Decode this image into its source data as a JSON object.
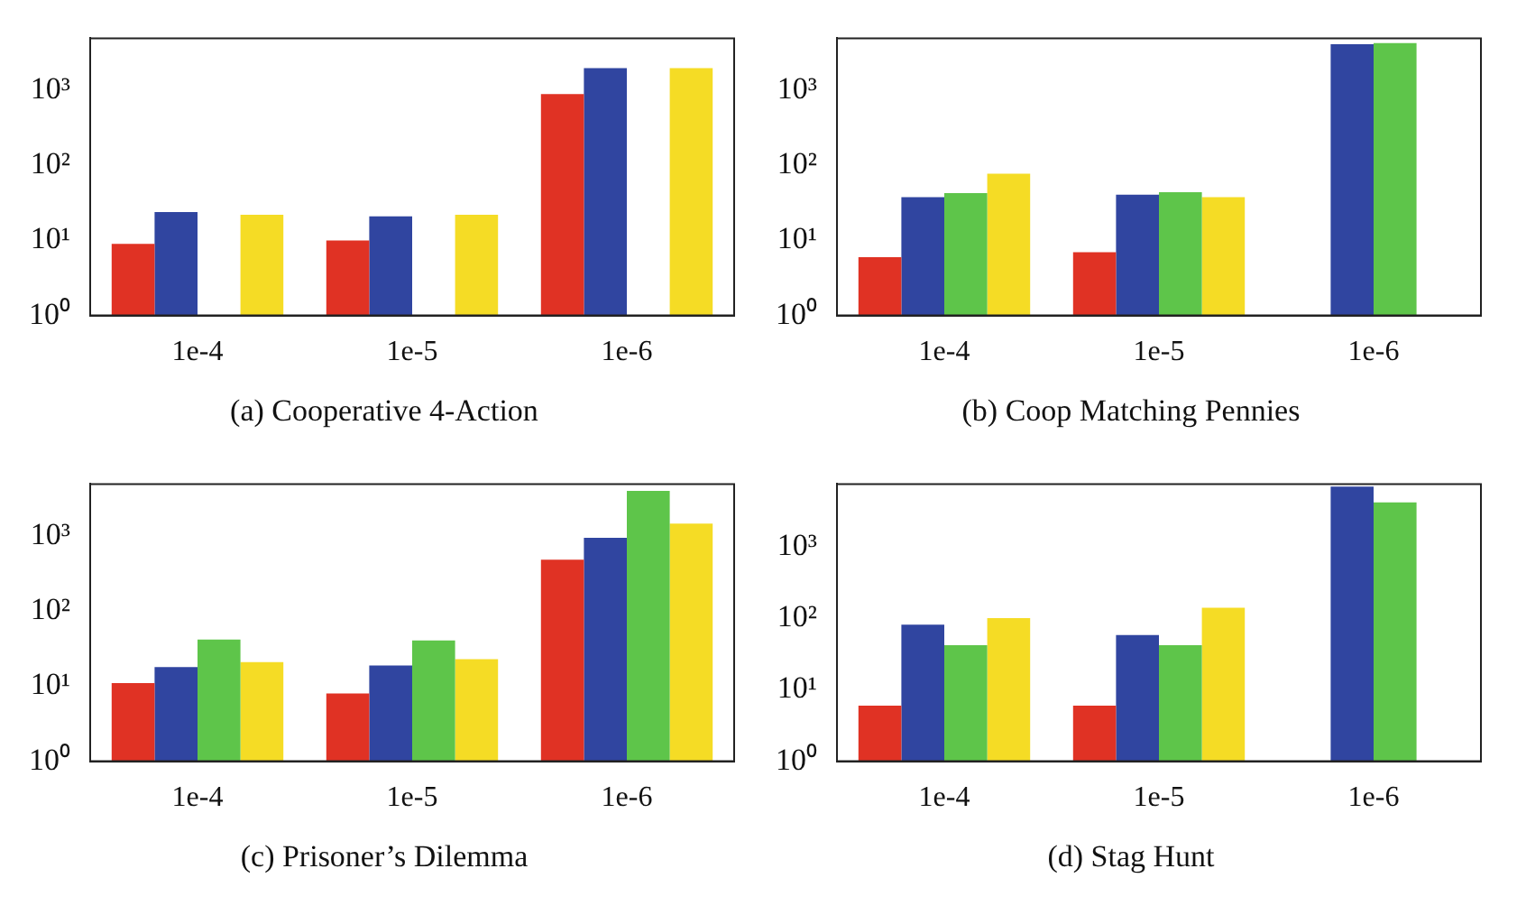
{
  "chart_data": [
    {
      "type": "bar",
      "title": "(a) Cooperative 4-Action",
      "categories": [
        "1e-4",
        "1e-5",
        "1e-6"
      ],
      "log": "y",
      "ylim": [
        1,
        5000
      ],
      "yticks": [
        {
          "value": 1,
          "label": "10⁰"
        },
        {
          "value": 10,
          "label": "10¹"
        },
        {
          "value": 100,
          "label": "10²"
        },
        {
          "value": 1000,
          "label": "10³"
        }
      ],
      "grid": false,
      "legend": false,
      "series": [
        {
          "color": "#e03224",
          "values": [
            9,
            10,
            900
          ]
        },
        {
          "color": "#3045a0",
          "values": [
            24,
            21,
            2000
          ]
        },
        {
          "color": "#5ec54a",
          "values": [
            null,
            null,
            null
          ]
        },
        {
          "color": "#f5dc25",
          "values": [
            22,
            22,
            2000
          ]
        }
      ]
    },
    {
      "type": "bar",
      "title": "(b) Coop Matching Pennies",
      "categories": [
        "1e-4",
        "1e-5",
        "1e-6"
      ],
      "log": "y",
      "ylim": [
        1,
        5000
      ],
      "yticks": [
        {
          "value": 1,
          "label": "10⁰"
        },
        {
          "value": 10,
          "label": "10¹"
        },
        {
          "value": 100,
          "label": "10²"
        },
        {
          "value": 1000,
          "label": "10³"
        }
      ],
      "grid": false,
      "legend": false,
      "series": [
        {
          "color": "#e03224",
          "values": [
            6,
            7,
            null
          ]
        },
        {
          "color": "#3045a0",
          "values": [
            38,
            41,
            4150
          ]
        },
        {
          "color": "#5ec54a",
          "values": [
            43,
            44,
            4300
          ]
        },
        {
          "color": "#f5dc25",
          "values": [
            78,
            38,
            null
          ]
        }
      ]
    },
    {
      "type": "bar",
      "title": "(c) Prisoner’s Dilemma",
      "categories": [
        "1e-4",
        "1e-5",
        "1e-6"
      ],
      "log": "y",
      "ylim": [
        1,
        5000
      ],
      "yticks": [
        {
          "value": 1,
          "label": "10⁰"
        },
        {
          "value": 10,
          "label": "10¹"
        },
        {
          "value": 100,
          "label": "10²"
        },
        {
          "value": 1000,
          "label": "10³"
        }
      ],
      "grid": false,
      "legend": false,
      "series": [
        {
          "color": "#e03224",
          "values": [
            11,
            8,
            490
          ]
        },
        {
          "color": "#3045a0",
          "values": [
            18,
            19,
            960
          ]
        },
        {
          "color": "#5ec54a",
          "values": [
            42,
            41,
            4050
          ]
        },
        {
          "color": "#f5dc25",
          "values": [
            21,
            23,
            1480
          ]
        }
      ]
    },
    {
      "type": "bar",
      "title": "(d) Stag Hunt",
      "categories": [
        "1e-4",
        "1e-5",
        "1e-6"
      ],
      "log": "y",
      "ylim": [
        1,
        7500
      ],
      "yticks": [
        {
          "value": 1,
          "label": "10⁰"
        },
        {
          "value": 10,
          "label": "10¹"
        },
        {
          "value": 100,
          "label": "10²"
        },
        {
          "value": 1000,
          "label": "10³"
        }
      ],
      "grid": false,
      "legend": false,
      "series": [
        {
          "color": "#e03224",
          "values": [
            6,
            6,
            null
          ]
        },
        {
          "color": "#3045a0",
          "values": [
            81,
            58,
            6900
          ]
        },
        {
          "color": "#5ec54a",
          "values": [
            42,
            42,
            4150
          ]
        },
        {
          "color": "#f5dc25",
          "values": [
            100,
            140,
            null
          ]
        }
      ]
    }
  ]
}
